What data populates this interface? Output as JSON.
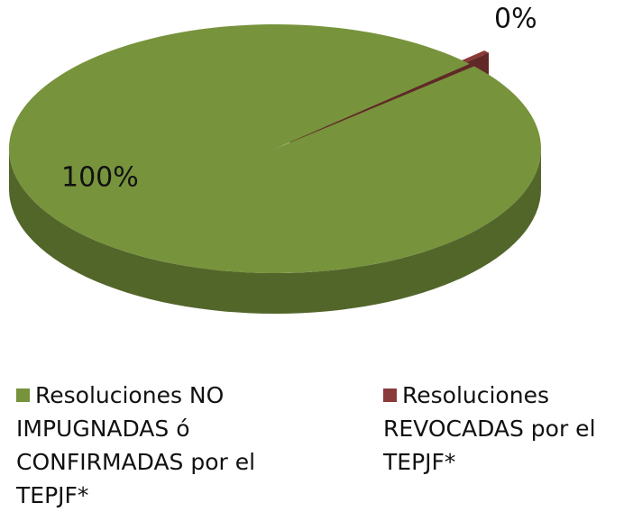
{
  "chart_data": {
    "type": "pie",
    "categories": [
      "Resoluciones NO IMPUGNADAS ó CONFIRMADAS por el TEPJF*",
      "Resoluciones REVOCADAS por el TEPJF*"
    ],
    "values": [
      99.6,
      0.4
    ],
    "value_labels": [
      "100%",
      "0%"
    ],
    "colors": [
      "#77933c",
      "#8b3a3a"
    ],
    "legend": "bottom"
  }
}
